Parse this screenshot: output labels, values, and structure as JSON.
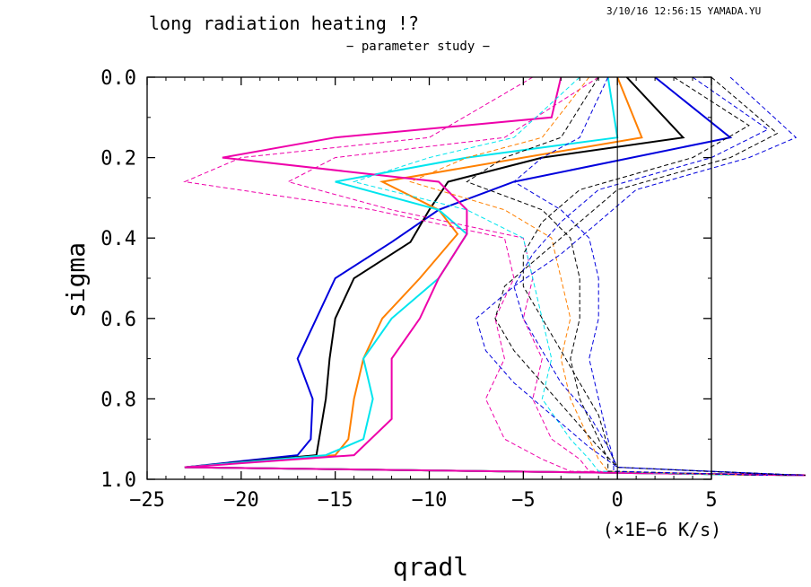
{
  "header": {
    "title": "long radiation heating !?",
    "subtitle": "− parameter study −",
    "stamp": "3/10/16 12:56:15 YAMADA.YU"
  },
  "chart_data": {
    "type": "line",
    "title": "long radiation heating !?",
    "subtitle": "− parameter study −",
    "xlabel": "qradl",
    "ylabel": "sigma",
    "units": "(×1E−6 K/s)",
    "xlim": [
      -25,
      5
    ],
    "ylim": [
      0.0,
      1.0
    ],
    "y_inverted": true,
    "x_ticks": [
      -25,
      -20,
      -15,
      -10,
      -5,
      0,
      5
    ],
    "x_tick_labels": [
      "−25",
      "−20",
      "−15",
      "−10",
      "−5",
      "0",
      "5"
    ],
    "y_ticks": [
      0.0,
      0.2,
      0.4,
      0.6,
      0.8,
      1.0
    ],
    "y_tick_labels": [
      "0.0",
      "0.2",
      "0.4",
      "0.6",
      "0.8",
      "1.0"
    ],
    "reference_line_x": 0,
    "grid": false,
    "series": [
      {
        "style": "solid",
        "color": "#0000dd",
        "x": [
          2.0,
          6.0,
          -5.5,
          -9.5,
          -12.0,
          -15.0,
          -16.0,
          -17.0,
          -16.2,
          -16.3,
          -17.0,
          -23.0,
          10.0
        ],
        "y": [
          0.0,
          0.15,
          0.26,
          0.33,
          0.41,
          0.5,
          0.6,
          0.7,
          0.8,
          0.9,
          0.94,
          0.97,
          0.99
        ]
      },
      {
        "style": "solid",
        "color": "#000000",
        "x": [
          0.5,
          3.5,
          -4.0,
          -9.0,
          -10.0,
          -11.0,
          -14.0,
          -15.0,
          -15.3,
          -15.5,
          -16.0,
          -23.0,
          10.0
        ],
        "y": [
          0.0,
          0.15,
          0.2,
          0.26,
          0.33,
          0.41,
          0.5,
          0.6,
          0.7,
          0.8,
          0.94,
          0.97,
          0.99
        ]
      },
      {
        "style": "solid",
        "color": "#ff8000",
        "x": [
          0.0,
          1.3,
          -5.0,
          -12.5,
          -9.5,
          -8.5,
          -10.5,
          -12.5,
          -13.5,
          -14.0,
          -14.3,
          -15.0,
          -23.0,
          10.0
        ],
        "y": [
          0.0,
          0.15,
          0.2,
          0.26,
          0.33,
          0.39,
          0.5,
          0.6,
          0.7,
          0.8,
          0.9,
          0.94,
          0.97,
          0.99
        ]
      },
      {
        "style": "solid",
        "color": "#00e5ee",
        "x": [
          -0.5,
          0.0,
          -8.0,
          -15.0,
          -9.5,
          -8.0,
          -9.5,
          -12.0,
          -13.5,
          -13.0,
          -13.5,
          -15.5,
          -23.0,
          10.0
        ],
        "y": [
          0.0,
          0.15,
          0.2,
          0.26,
          0.33,
          0.39,
          0.5,
          0.6,
          0.7,
          0.8,
          0.9,
          0.94,
          0.97,
          0.99
        ]
      },
      {
        "style": "solid",
        "color": "#ee00aa",
        "x": [
          -3.0,
          -3.5,
          -15.0,
          -21.0,
          -9.5,
          -8.0,
          -8.0,
          -9.5,
          -10.5,
          -12.0,
          -12.0,
          -12.0,
          -14.0,
          -23.0,
          10.0
        ],
        "y": [
          0.0,
          0.1,
          0.15,
          0.2,
          0.26,
          0.33,
          0.39,
          0.5,
          0.6,
          0.7,
          0.8,
          0.85,
          0.94,
          0.97,
          0.99
        ]
      },
      {
        "style": "dashed",
        "color": "#ee00aa",
        "x": [
          -4.5,
          -10.0,
          -20.0,
          -23.0,
          -13.0,
          -6.0,
          -5.5,
          -6.5,
          -6.0,
          -7.0,
          -6.0,
          -4.0,
          -2.5,
          9.0
        ],
        "y": [
          0.0,
          0.15,
          0.2,
          0.26,
          0.33,
          0.4,
          0.5,
          0.6,
          0.7,
          0.8,
          0.9,
          0.95,
          0.98,
          0.99
        ]
      },
      {
        "style": "dashed",
        "color": "#ee00aa",
        "x": [
          -1.0,
          -6.0,
          -15.0,
          -17.5,
          -12.0,
          -5.0,
          -4.5,
          -5.0,
          -4.0,
          -4.5,
          -3.5,
          -2.0,
          -1.5,
          8.0
        ],
        "y": [
          0.0,
          0.15,
          0.2,
          0.26,
          0.33,
          0.4,
          0.5,
          0.6,
          0.7,
          0.8,
          0.9,
          0.95,
          0.98,
          0.99
        ]
      },
      {
        "style": "dashed",
        "color": "#00e5ee",
        "x": [
          -2.0,
          -5.5,
          -10.0,
          -14.0,
          -8.0,
          -5.0,
          -4.5,
          -4.0,
          -3.5,
          -4.0,
          -2.5,
          -1.5,
          -1.0,
          6.0
        ],
        "y": [
          0.0,
          0.15,
          0.2,
          0.26,
          0.33,
          0.4,
          0.5,
          0.6,
          0.7,
          0.8,
          0.9,
          0.95,
          0.98,
          0.99
        ]
      },
      {
        "style": "dashed",
        "color": "#ff8000",
        "x": [
          -1.5,
          -4.0,
          -8.0,
          -11.0,
          -6.0,
          -3.5,
          -3.0,
          -2.5,
          -3.0,
          -2.5,
          -1.5,
          -1.0,
          -0.5,
          7.0
        ],
        "y": [
          0.0,
          0.15,
          0.2,
          0.26,
          0.33,
          0.4,
          0.5,
          0.6,
          0.7,
          0.8,
          0.9,
          0.95,
          0.98,
          0.99
        ]
      },
      {
        "style": "dashed",
        "color": "#000000",
        "x": [
          -1.0,
          -3.0,
          -6.0,
          -8.0,
          -4.0,
          -2.5,
          -2.0,
          -2.0,
          -2.5,
          -2.0,
          -1.0,
          -0.5,
          -0.5,
          7.5
        ],
        "y": [
          0.0,
          0.15,
          0.2,
          0.26,
          0.33,
          0.4,
          0.5,
          0.6,
          0.7,
          0.8,
          0.9,
          0.95,
          0.98,
          0.99
        ]
      },
      {
        "style": "dashed",
        "color": "#0000dd",
        "x": [
          -0.5,
          -2.0,
          -4.0,
          -5.5,
          -3.0,
          -1.5,
          -1.0,
          -1.0,
          -1.5,
          -1.0,
          -0.5,
          -0.2,
          -0.2,
          8.0
        ],
        "y": [
          0.0,
          0.15,
          0.2,
          0.26,
          0.33,
          0.4,
          0.5,
          0.6,
          0.7,
          0.8,
          0.9,
          0.95,
          0.98,
          0.99
        ]
      },
      {
        "style": "dashed",
        "color": "#000000",
        "x": [
          3.0,
          7.0,
          4.0,
          -2.0,
          -4.0,
          -5.0,
          -5.0,
          -4.0,
          -3.0,
          -2.0,
          -1.0,
          -0.5,
          0.0,
          9.0
        ],
        "y": [
          0.0,
          0.12,
          0.2,
          0.28,
          0.36,
          0.44,
          0.52,
          0.6,
          0.68,
          0.76,
          0.84,
          0.92,
          0.97,
          0.99
        ]
      },
      {
        "style": "dashed",
        "color": "#0000dd",
        "x": [
          4.0,
          8.0,
          5.0,
          -1.0,
          -3.0,
          -4.5,
          -5.5,
          -5.0,
          -4.0,
          -3.0,
          -1.5,
          -0.5,
          0.0,
          9.5
        ],
        "y": [
          0.0,
          0.13,
          0.2,
          0.28,
          0.36,
          0.44,
          0.52,
          0.6,
          0.68,
          0.76,
          0.84,
          0.92,
          0.97,
          0.99
        ]
      },
      {
        "style": "dashed",
        "color": "#000000",
        "x": [
          5.0,
          8.5,
          6.0,
          0.0,
          -2.0,
          -4.0,
          -6.0,
          -6.5,
          -5.5,
          -4.0,
          -2.5,
          -1.0,
          0.0,
          10.0
        ],
        "y": [
          0.0,
          0.14,
          0.2,
          0.28,
          0.36,
          0.44,
          0.52,
          0.6,
          0.68,
          0.76,
          0.84,
          0.92,
          0.97,
          0.99
        ]
      },
      {
        "style": "dashed",
        "color": "#0000dd",
        "x": [
          6.0,
          9.5,
          7.0,
          1.0,
          -1.0,
          -3.0,
          -5.5,
          -7.5,
          -7.0,
          -5.5,
          -3.5,
          -1.5,
          0.0,
          10.0
        ],
        "y": [
          0.0,
          0.15,
          0.2,
          0.28,
          0.36,
          0.44,
          0.52,
          0.6,
          0.68,
          0.76,
          0.84,
          0.92,
          0.97,
          0.99
        ]
      }
    ]
  }
}
